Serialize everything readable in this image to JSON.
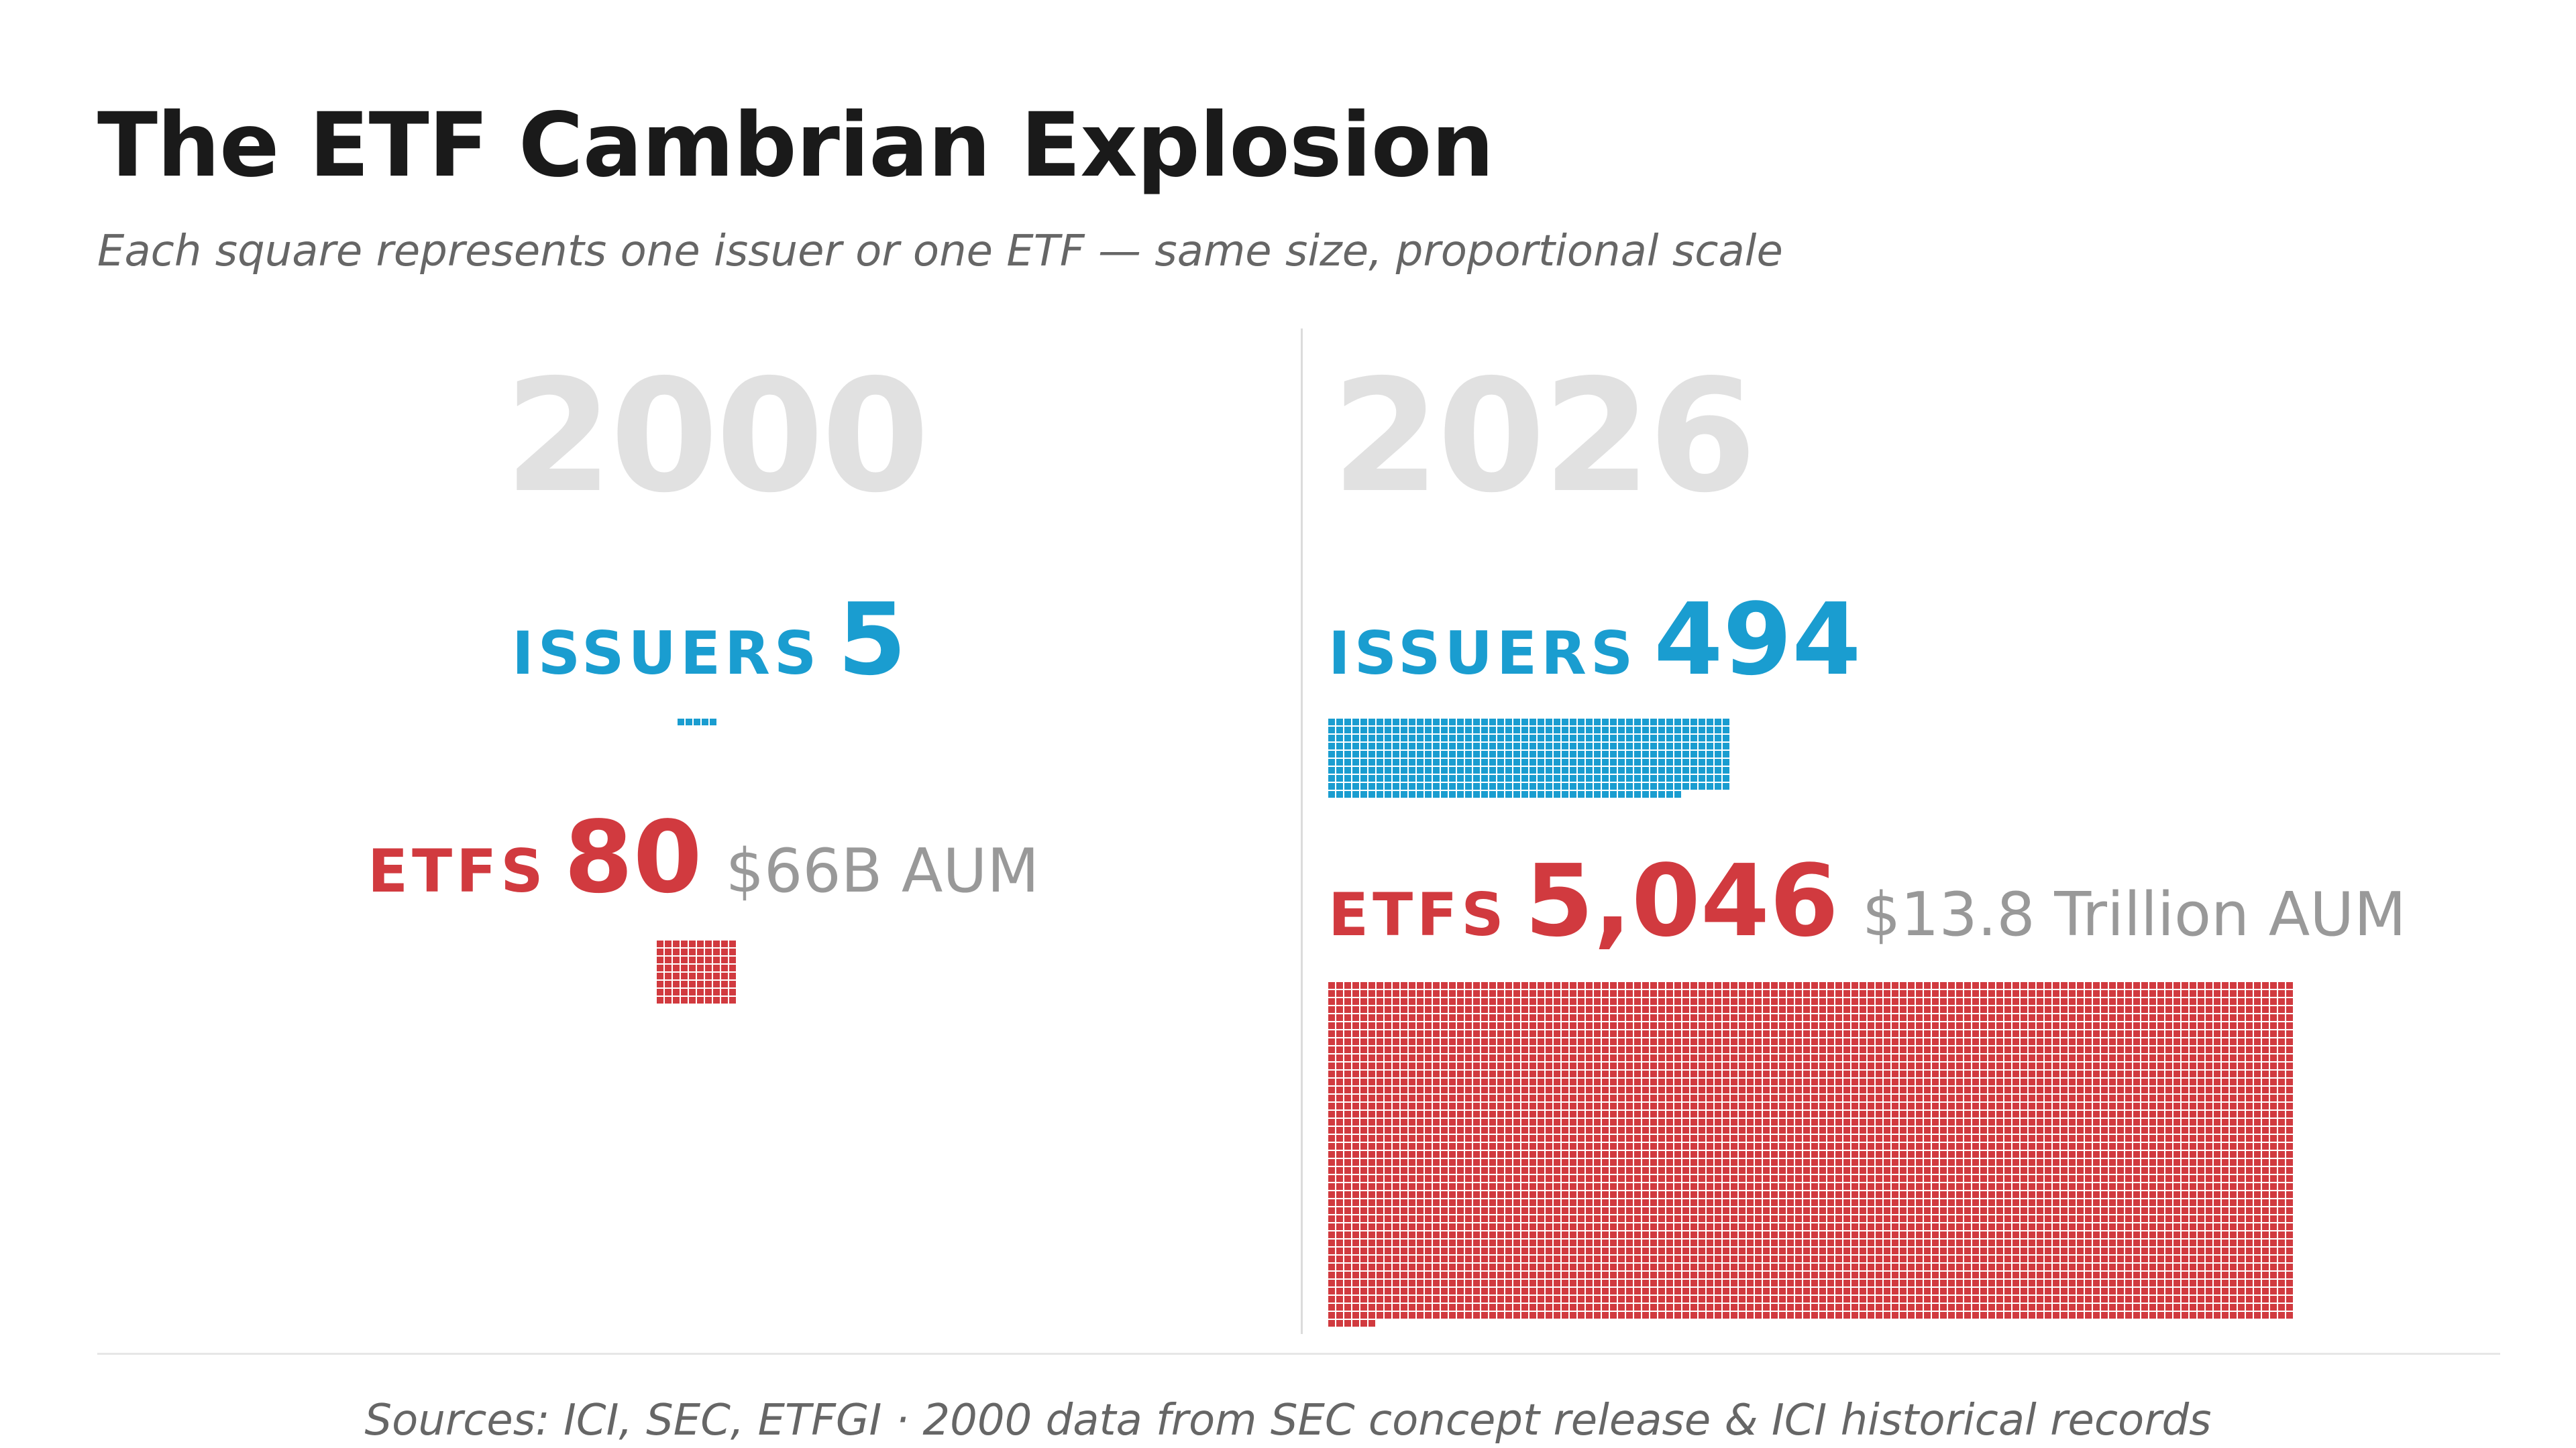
{
  "title": "The ETF Cambrian Explosion",
  "subtitle": "Each square represents one issuer or one ETF — same size, proportional scale",
  "source": "Sources: ICI, SEC, ETFGI · 2000 data from SEC concept release & ICI historical records",
  "colors": {
    "issuers": "#1a9dd0",
    "etfs": "#d13a3f",
    "year": "#e1e1e1",
    "aum": "#999999"
  },
  "panels": [
    {
      "year": "2000",
      "issuers_label": "ISSUERS",
      "issuers_value": "5",
      "etfs_label": "ETFS",
      "etfs_value": "80",
      "aum": "$66B AUM"
    },
    {
      "year": "2026",
      "issuers_label": "ISSUERS",
      "issuers_value": "494",
      "etfs_label": "ETFS",
      "etfs_value": "5,046",
      "aum": "$13.8 Trillion AUM"
    }
  ],
  "chart_data": {
    "type": "waffle",
    "unit": "one issuer or one ETF per square",
    "categories": [
      "2000",
      "2026"
    ],
    "series": [
      {
        "name": "ISSUERS",
        "values": [
          5,
          494
        ]
      },
      {
        "name": "ETFS",
        "values": [
          80,
          5046
        ]
      }
    ],
    "aum": [
      "$66B AUM",
      "$13.8 Trillion AUM"
    ]
  }
}
